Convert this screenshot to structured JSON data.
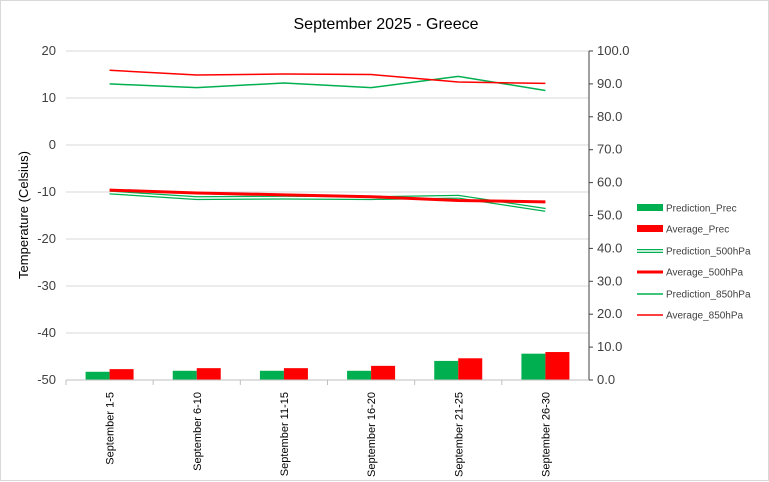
{
  "chart_data": {
    "type": "bar+line",
    "title": "September 2025 - Greece",
    "ylabel": "Temperature (Celsius)",
    "ylim": [
      -50,
      20
    ],
    "y_ticks": [
      "20",
      "10",
      "0",
      "-10",
      "-20",
      "-30",
      "-40",
      "-50"
    ],
    "y2lim": [
      0,
      100
    ],
    "y2_ticks": [
      "100.0",
      "90.0",
      "80.0",
      "70.0",
      "60.0",
      "50.0",
      "40.0",
      "30.0",
      "20.0",
      "10.0",
      "0.0"
    ],
    "grid": true,
    "legend_position": "right",
    "categories": [
      "September 1-5",
      "September 6-10",
      "September 11-15",
      "September 16-20",
      "September 21-25",
      "September 26-30"
    ],
    "series": [
      {
        "name": "Prediction_Prec",
        "kind": "bar",
        "axis": "right",
        "color": "#00b050",
        "values": [
          2.5,
          2.8,
          2.8,
          2.8,
          5.8,
          8.0
        ]
      },
      {
        "name": "Average_Prec",
        "kind": "bar",
        "axis": "right",
        "color": "#ff0000",
        "values": [
          3.3,
          3.6,
          3.6,
          4.3,
          6.6,
          8.5
        ]
      },
      {
        "name": "Prediction_500hPa",
        "kind": "line",
        "style": "double",
        "axis": "left",
        "color": "#00b050",
        "values": [
          -10.1,
          -11.3,
          -11.2,
          -11.3,
          -11.0,
          -13.8
        ]
      },
      {
        "name": "Average_500hPa",
        "kind": "line",
        "style": "thick",
        "axis": "left",
        "color": "#ff0000",
        "values": [
          -9.6,
          -10.2,
          -10.6,
          -11.0,
          -11.8,
          -12.1
        ]
      },
      {
        "name": "Prediction_850hPa",
        "kind": "line",
        "style": "thin",
        "axis": "left",
        "color": "#00b050",
        "values": [
          13.0,
          12.2,
          13.2,
          12.2,
          14.6,
          11.6
        ]
      },
      {
        "name": "Average_850hPa",
        "kind": "line",
        "style": "thin",
        "axis": "left",
        "color": "#ff0000",
        "values": [
          15.9,
          14.9,
          15.1,
          15.0,
          13.4,
          13.1
        ]
      }
    ]
  }
}
